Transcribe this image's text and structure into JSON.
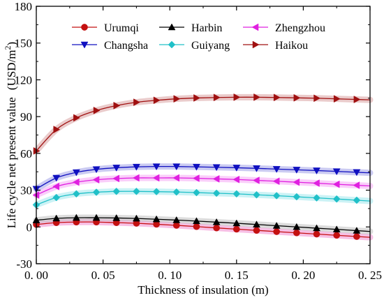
{
  "chart_data": {
    "type": "line",
    "xlabel": "Thickness of insulation (m)",
    "ylabel": "Life cycle net present value",
    "ylabel_unit_prefix": "(USD/m",
    "ylabel_unit_sup": "2",
    "ylabel_unit_suffix": ")",
    "xlim": [
      0.0,
      0.25
    ],
    "ylim": [
      -30,
      180
    ],
    "xticks": [
      0.0,
      0.05,
      0.1,
      0.15,
      0.2,
      0.25
    ],
    "xtick_labels": [
      "0. 00",
      "0. 05",
      "0. 10",
      "0. 15",
      "0. 20",
      "0. 25"
    ],
    "yticks": [
      -30,
      0,
      30,
      60,
      90,
      120,
      150,
      180
    ],
    "ytick_labels": [
      "-30",
      "0",
      "30",
      "60",
      "90",
      "120",
      "150",
      "180"
    ],
    "legend_position": "top",
    "series": [
      {
        "name": "Urumqi",
        "marker": "circle",
        "color": "#c41010",
        "band_color": "#f08bd0",
        "x": [
          0.0,
          0.015,
          0.03,
          0.045,
          0.06,
          0.075,
          0.09,
          0.105,
          0.12,
          0.135,
          0.15,
          0.165,
          0.18,
          0.195,
          0.21,
          0.225,
          0.24
        ],
        "y": [
          2.0,
          3.5,
          4.0,
          4.0,
          3.5,
          3.0,
          2.2,
          1.3,
          0.3,
          -0.8,
          -1.8,
          -2.8,
          -3.8,
          -4.8,
          -5.8,
          -6.8,
          -7.8
        ]
      },
      {
        "name": "Harbin",
        "marker": "triangle-up",
        "color": "#000000",
        "band_color": "#c0c0c0",
        "x": [
          0.0,
          0.015,
          0.03,
          0.045,
          0.06,
          0.075,
          0.09,
          0.105,
          0.12,
          0.135,
          0.15,
          0.165,
          0.18,
          0.195,
          0.21,
          0.225,
          0.24
        ],
        "y": [
          5.5,
          7.0,
          7.5,
          7.5,
          7.3,
          6.9,
          6.3,
          5.6,
          4.8,
          3.9,
          3.0,
          2.0,
          1.0,
          0.0,
          -1.0,
          -2.0,
          -3.0
        ]
      },
      {
        "name": "Zhengzhou",
        "marker": "triangle-left",
        "color": "#e020e0",
        "band_color": "#f6a6f6",
        "x": [
          0.0,
          0.015,
          0.03,
          0.045,
          0.06,
          0.075,
          0.09,
          0.105,
          0.12,
          0.135,
          0.15,
          0.165,
          0.18,
          0.195,
          0.21,
          0.225,
          0.24
        ],
        "y": [
          26,
          33,
          36.5,
          38.5,
          39.5,
          40,
          40,
          40,
          39.7,
          39.2,
          38.7,
          38,
          37.3,
          36.5,
          35.7,
          34.8,
          34
        ]
      },
      {
        "name": "Changsha",
        "marker": "triangle-down",
        "color": "#1010c0",
        "band_color": "#a0a0e8",
        "x": [
          0.0,
          0.015,
          0.03,
          0.045,
          0.06,
          0.075,
          0.09,
          0.105,
          0.12,
          0.135,
          0.15,
          0.165,
          0.18,
          0.195,
          0.21,
          0.225,
          0.24
        ],
        "y": [
          31,
          40,
          44.5,
          47,
          48.3,
          49,
          49.3,
          49.3,
          49,
          48.7,
          48.3,
          47.8,
          47.2,
          46.6,
          46,
          45.3,
          44.6
        ]
      },
      {
        "name": "Guiyang",
        "marker": "diamond",
        "color": "#20c0c8",
        "band_color": "#a0e8ec",
        "x": [
          0.0,
          0.015,
          0.03,
          0.045,
          0.06,
          0.075,
          0.09,
          0.105,
          0.12,
          0.135,
          0.15,
          0.165,
          0.18,
          0.195,
          0.21,
          0.225,
          0.24
        ],
        "y": [
          18,
          24,
          27,
          28.3,
          29,
          29,
          28.8,
          28.5,
          28,
          27.5,
          27,
          26.2,
          25.5,
          24.6,
          23.7,
          22.8,
          21.8
        ]
      },
      {
        "name": "Haikou",
        "marker": "triangle-right",
        "color": "#a01010",
        "band_color": "#d8a0a0",
        "x": [
          0.0,
          0.015,
          0.03,
          0.045,
          0.06,
          0.075,
          0.09,
          0.105,
          0.12,
          0.135,
          0.15,
          0.165,
          0.18,
          0.195,
          0.21,
          0.225,
          0.24
        ],
        "y": [
          62,
          79.5,
          89,
          95,
          99,
          101.7,
          103.3,
          104.5,
          105.2,
          105.6,
          105.8,
          105.8,
          105.6,
          105.3,
          105,
          104.5,
          104
        ]
      }
    ]
  }
}
